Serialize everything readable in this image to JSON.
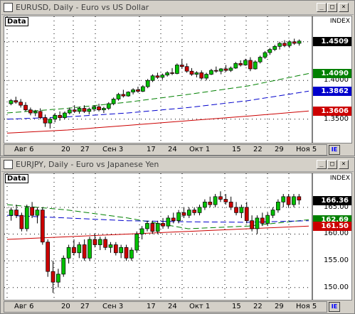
{
  "windows": [
    {
      "title": "EURUSD, Daily - Euro vs US Dollar",
      "data_label": "Data",
      "index_label": "INDEX",
      "y_ticks": [
        {
          "label": "1.4500",
          "value": 1.45
        },
        {
          "label": "1.4000",
          "value": 1.4
        },
        {
          "label": "1.3500",
          "value": 1.35
        }
      ],
      "tags": [
        {
          "label": "1.4509",
          "value": 1.4509,
          "bg": "#000000"
        },
        {
          "label": "1.4090",
          "value": 1.409,
          "bg": "#008000"
        },
        {
          "label": "1.3862",
          "value": 1.3862,
          "bg": "#0000cc"
        },
        {
          "label": "1.3606",
          "value": 1.3606,
          "bg": "#cc0000"
        }
      ],
      "x_labels": [
        "Авг 6",
        "20",
        "27",
        "Сен 3",
        "17",
        "24",
        "Окт 1",
        "15",
        "22",
        "29",
        "Ноя 5"
      ]
    },
    {
      "title": "EURJPY, Daily - Euro vs Japanese Yen",
      "data_label": "Data",
      "index_label": "INDEX",
      "y_ticks": [
        {
          "label": "165.00",
          "value": 165
        },
        {
          "label": "160.00",
          "value": 160
        },
        {
          "label": "155.00",
          "value": 155
        },
        {
          "label": "150.00",
          "value": 150
        }
      ],
      "tags": [
        {
          "label": "166.36",
          "value": 166.36,
          "bg": "#000000"
        },
        {
          "label": "162.69",
          "value": 162.69,
          "bg": "#008000"
        },
        {
          "label": "161.50",
          "value": 161.5,
          "bg": "#cc0000"
        }
      ],
      "x_labels": [
        "Авг 6",
        "20",
        "27",
        "Сен 3",
        "17",
        "24",
        "Окт 1",
        "15",
        "22",
        "29",
        "Ноя 5"
      ]
    }
  ],
  "chart_data": [
    {
      "type": "candlestick",
      "title": "EURUSD, Daily - Euro vs US Dollar",
      "ylim": [
        1.325,
        1.47
      ],
      "candles": [
        [
          1.37,
          1.376,
          1.368,
          1.374
        ],
        [
          1.374,
          1.379,
          1.37,
          1.372
        ],
        [
          1.372,
          1.376,
          1.365,
          1.368
        ],
        [
          1.368,
          1.372,
          1.36,
          1.362
        ],
        [
          1.362,
          1.365,
          1.355,
          1.358
        ],
        [
          1.358,
          1.362,
          1.354,
          1.36
        ],
        [
          1.36,
          1.364,
          1.35,
          1.352
        ],
        [
          1.352,
          1.356,
          1.34,
          1.345
        ],
        [
          1.345,
          1.352,
          1.338,
          1.35
        ],
        [
          1.35,
          1.358,
          1.346,
          1.355
        ],
        [
          1.355,
          1.36,
          1.348,
          1.352
        ],
        [
          1.352,
          1.36,
          1.35,
          1.358
        ],
        [
          1.358,
          1.365,
          1.356,
          1.362
        ],
        [
          1.362,
          1.368,
          1.358,
          1.36
        ],
        [
          1.36,
          1.366,
          1.357,
          1.364
        ],
        [
          1.364,
          1.368,
          1.358,
          1.36
        ],
        [
          1.36,
          1.365,
          1.356,
          1.363
        ],
        [
          1.363,
          1.368,
          1.36,
          1.366
        ],
        [
          1.366,
          1.37,
          1.36,
          1.362
        ],
        [
          1.362,
          1.366,
          1.358,
          1.364
        ],
        [
          1.364,
          1.372,
          1.362,
          1.37
        ],
        [
          1.37,
          1.378,
          1.368,
          1.376
        ],
        [
          1.376,
          1.384,
          1.374,
          1.382
        ],
        [
          1.382,
          1.388,
          1.378,
          1.38
        ],
        [
          1.38,
          1.386,
          1.379,
          1.385
        ],
        [
          1.385,
          1.39,
          1.382,
          1.388
        ],
        [
          1.388,
          1.392,
          1.384,
          1.386
        ],
        [
          1.386,
          1.394,
          1.385,
          1.392
        ],
        [
          1.392,
          1.402,
          1.39,
          1.4
        ],
        [
          1.4,
          1.408,
          1.398,
          1.406
        ],
        [
          1.406,
          1.41,
          1.402,
          1.404
        ],
        [
          1.404,
          1.409,
          1.401,
          1.407
        ],
        [
          1.407,
          1.412,
          1.405,
          1.41
        ],
        [
          1.41,
          1.416,
          1.407,
          1.409
        ],
        [
          1.409,
          1.422,
          1.408,
          1.42
        ],
        [
          1.42,
          1.428,
          1.415,
          1.418
        ],
        [
          1.418,
          1.422,
          1.41,
          1.412
        ],
        [
          1.412,
          1.416,
          1.406,
          1.408
        ],
        [
          1.408,
          1.412,
          1.404,
          1.41
        ],
        [
          1.41,
          1.413,
          1.401,
          1.403
        ],
        [
          1.403,
          1.41,
          1.4,
          1.408
        ],
        [
          1.408,
          1.415,
          1.407,
          1.413
        ],
        [
          1.413,
          1.418,
          1.41,
          1.412
        ],
        [
          1.412,
          1.416,
          1.408,
          1.415
        ],
        [
          1.415,
          1.42,
          1.411,
          1.413
        ],
        [
          1.413,
          1.418,
          1.411,
          1.416
        ],
        [
          1.416,
          1.424,
          1.415,
          1.422
        ],
        [
          1.422,
          1.426,
          1.418,
          1.42
        ],
        [
          1.42,
          1.428,
          1.419,
          1.426
        ],
        [
          1.426,
          1.43,
          1.412,
          1.415
        ],
        [
          1.415,
          1.426,
          1.414,
          1.424
        ],
        [
          1.424,
          1.432,
          1.422,
          1.43
        ],
        [
          1.43,
          1.438,
          1.428,
          1.436
        ],
        [
          1.436,
          1.442,
          1.433,
          1.44
        ],
        [
          1.44,
          1.446,
          1.438,
          1.444
        ],
        [
          1.444,
          1.45,
          1.44,
          1.448
        ],
        [
          1.448,
          1.452,
          1.443,
          1.445
        ],
        [
          1.445,
          1.452,
          1.442,
          1.45
        ],
        [
          1.45,
          1.454,
          1.446,
          1.448
        ],
        [
          1.448,
          1.453,
          1.445,
          1.4509
        ]
      ],
      "moving_averages": [
        {
          "color": "#008000",
          "values": [
            1.358,
            1.364,
            1.372,
            1.382,
            1.393,
            1.409
          ]
        },
        {
          "color": "#0000cc",
          "values": [
            1.35,
            1.353,
            1.358,
            1.365,
            1.374,
            1.3862
          ]
        },
        {
          "color": "#cc0000",
          "values": [
            1.332,
            1.336,
            1.342,
            1.348,
            1.354,
            1.3606
          ]
        }
      ]
    },
    {
      "type": "candlestick",
      "title": "EURJPY, Daily - Euro vs Japanese Yen",
      "ylim": [
        148.5,
        169.5
      ],
      "candles": [
        [
          163.5,
          165.0,
          162.5,
          164.5
        ],
        [
          164.5,
          165.5,
          163.0,
          163.5
        ],
        [
          163.5,
          164.0,
          160.5,
          161.0
        ],
        [
          161.0,
          165.5,
          160.5,
          165.0
        ],
        [
          165.0,
          166.0,
          163.0,
          163.5
        ],
        [
          163.5,
          165.0,
          162.0,
          164.5
        ],
        [
          164.5,
          165.0,
          158.0,
          158.5
        ],
        [
          158.5,
          159.0,
          152.0,
          153.0
        ],
        [
          153.0,
          155.0,
          149.0,
          151.0
        ],
        [
          151.0,
          153.5,
          150.0,
          152.5
        ],
        [
          152.5,
          156.0,
          152.0,
          155.5
        ],
        [
          155.5,
          158.0,
          154.5,
          157.5
        ],
        [
          157.5,
          159.0,
          156.0,
          156.5
        ],
        [
          156.5,
          158.5,
          155.5,
          158.0
        ],
        [
          158.0,
          159.0,
          155.0,
          155.5
        ],
        [
          155.5,
          159.5,
          155.0,
          159.0
        ],
        [
          159.0,
          160.0,
          157.5,
          158.0
        ],
        [
          158.0,
          159.5,
          157.0,
          159.0
        ],
        [
          159.0,
          159.5,
          157.0,
          157.5
        ],
        [
          157.5,
          158.5,
          156.5,
          158.0
        ],
        [
          158.0,
          158.5,
          156.0,
          156.5
        ],
        [
          156.5,
          158.0,
          155.5,
          157.5
        ],
        [
          157.5,
          158.0,
          155.0,
          155.5
        ],
        [
          155.5,
          157.5,
          155.0,
          157.0
        ],
        [
          157.0,
          160.5,
          156.5,
          160.0
        ],
        [
          160.0,
          161.5,
          159.0,
          161.0
        ],
        [
          161.0,
          162.5,
          160.5,
          162.0
        ],
        [
          162.0,
          162.5,
          160.0,
          160.5
        ],
        [
          160.5,
          162.5,
          160.0,
          162.0
        ],
        [
          162.0,
          163.0,
          161.0,
          161.5
        ],
        [
          161.5,
          163.5,
          161.0,
          163.0
        ],
        [
          163.0,
          164.0,
          162.0,
          162.5
        ],
        [
          162.5,
          164.5,
          162.0,
          164.0
        ],
        [
          164.0,
          165.0,
          163.0,
          163.5
        ],
        [
          163.5,
          165.0,
          163.0,
          164.5
        ],
        [
          164.5,
          165.0,
          163.5,
          164.0
        ],
        [
          164.0,
          165.5,
          163.5,
          165.0
        ],
        [
          165.0,
          166.5,
          164.5,
          166.0
        ],
        [
          166.0,
          167.0,
          165.0,
          165.5
        ],
        [
          165.5,
          167.5,
          165.0,
          167.0
        ],
        [
          167.0,
          168.0,
          166.0,
          166.5
        ],
        [
          166.5,
          167.5,
          165.5,
          166.0
        ],
        [
          166.0,
          167.0,
          164.5,
          165.0
        ],
        [
          165.0,
          166.0,
          163.5,
          164.0
        ],
        [
          164.0,
          165.5,
          163.0,
          165.0
        ],
        [
          165.0,
          166.0,
          162.0,
          162.5
        ],
        [
          162.5,
          163.5,
          160.5,
          161.0
        ],
        [
          161.0,
          163.5,
          160.0,
          163.0
        ],
        [
          163.0,
          164.0,
          161.5,
          162.0
        ],
        [
          162.0,
          164.0,
          161.5,
          163.5
        ],
        [
          163.5,
          165.0,
          163.0,
          164.5
        ],
        [
          164.5,
          166.5,
          164.0,
          166.0
        ],
        [
          166.0,
          167.5,
          165.0,
          167.0
        ],
        [
          167.0,
          167.5,
          165.0,
          165.5
        ],
        [
          165.5,
          167.5,
          165.0,
          167.0
        ],
        [
          167.0,
          167.5,
          165.5,
          166.36
        ]
      ],
      "moving_averages": [
        {
          "color": "#008000",
          "values": [
            165.5,
            164.5,
            163.0,
            161.0,
            161.5,
            162.69
          ]
        },
        {
          "color": "#0000cc",
          "values": [
            163.5,
            163.0,
            162.5,
            162.3,
            162.2,
            162.5
          ]
        },
        {
          "color": "#cc0000",
          "values": [
            159.0,
            159.5,
            160.0,
            160.5,
            161.0,
            161.5
          ]
        }
      ]
    }
  ]
}
